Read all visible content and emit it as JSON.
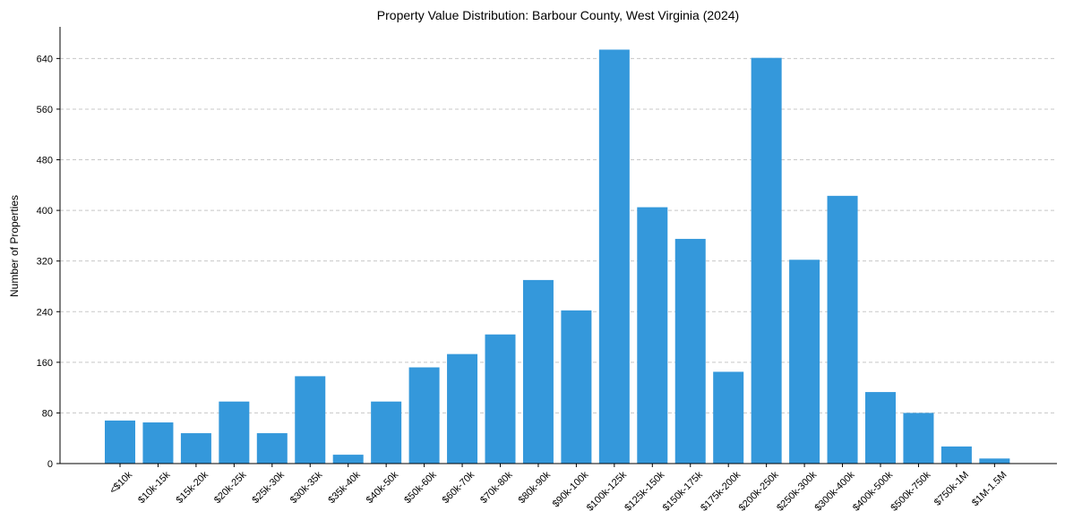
{
  "chart_data": {
    "type": "bar",
    "title": "Property Value Distribution: Barbour County, West Virginia (2024)",
    "xlabel": "",
    "ylabel": "Number of Properties",
    "ylim": [
      0,
      690
    ],
    "yticks": [
      0,
      80,
      160,
      240,
      320,
      400,
      480,
      560,
      640
    ],
    "grid": "y-dashed",
    "bar_color": "#3498db",
    "categories": [
      "<$10k",
      "$10k-15k",
      "$15k-20k",
      "$20k-25k",
      "$25k-30k",
      "$30k-35k",
      "$35k-40k",
      "$40k-50k",
      "$50k-60k",
      "$60k-70k",
      "$70k-80k",
      "$80k-90k",
      "$90k-100k",
      "$100k-125k",
      "$125k-150k",
      "$150k-175k",
      "$175k-200k",
      "$200k-250k",
      "$250k-300k",
      "$300k-400k",
      "$400k-500k",
      "$500k-750k",
      "$750k-1M",
      "$1M-1.5M"
    ],
    "values": [
      68,
      65,
      48,
      98,
      48,
      138,
      14,
      98,
      152,
      173,
      204,
      290,
      242,
      654,
      405,
      355,
      145,
      641,
      322,
      423,
      113,
      80,
      27,
      8
    ]
  }
}
